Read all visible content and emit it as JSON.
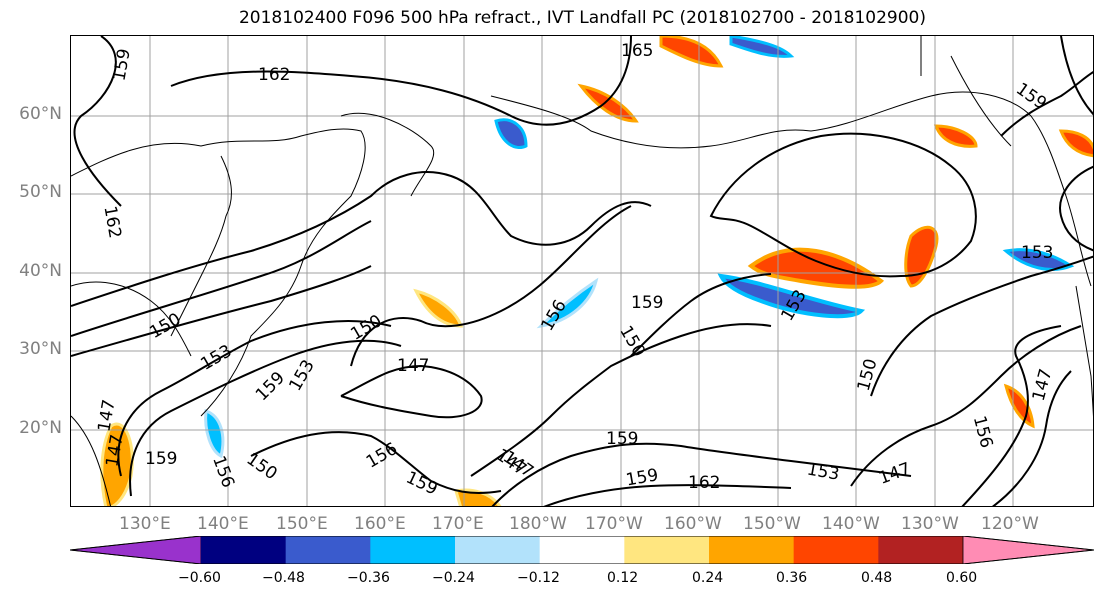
{
  "title": "2018102400 F096 500 hPa refract., IVT Landfall PC (2018102700 - 2018102900)",
  "lat_labels": [
    "60°N",
    "50°N",
    "40°N",
    "30°N",
    "20°N"
  ],
  "lon_labels": [
    "130°E",
    "140°E",
    "150°E",
    "160°E",
    "170°E",
    "180°W",
    "170°W",
    "160°W",
    "150°W",
    "140°W",
    "130°W",
    "120°W"
  ],
  "contour_labels": [
    "165",
    "162",
    "159",
    "162",
    "150",
    "153",
    "159",
    "153",
    "147",
    "150",
    "147",
    "156",
    "159",
    "150",
    "156",
    "159",
    "147",
    "147",
    "159",
    "162",
    "153",
    "147",
    "150",
    "156",
    "147",
    "159",
    "153",
    "153",
    "159",
    "150",
    "159",
    "156",
    "147"
  ],
  "colorbar": {
    "colors": [
      "#9932cc",
      "#000080",
      "#3a5bcd",
      "#00bfff",
      "#b2e2fb",
      "#ffffff",
      "#ffe680",
      "#ffa500",
      "#ff4500",
      "#b22222",
      "#ff8cb4"
    ],
    "ticks": [
      "−0.60",
      "−0.48",
      "−0.36",
      "−0.24",
      "−0.12",
      "0.12",
      "0.24",
      "0.36",
      "0.48",
      "0.60"
    ],
    "extend": "both"
  },
  "grid": true
}
